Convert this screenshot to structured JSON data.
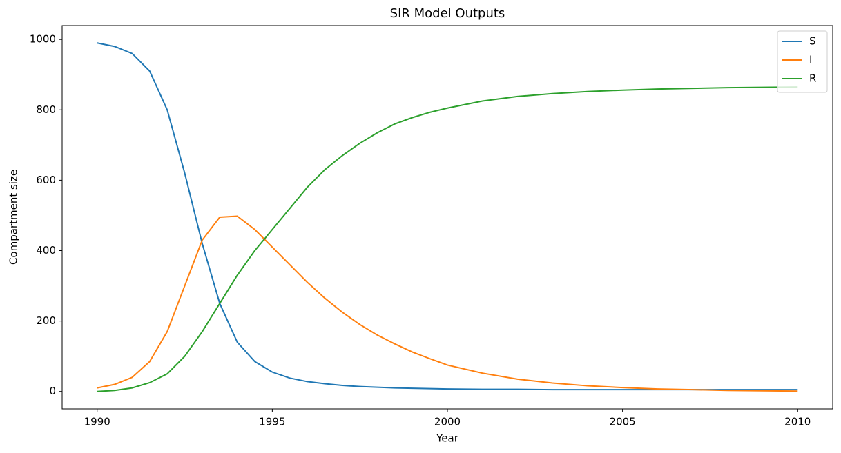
{
  "chart_data": {
    "type": "line",
    "title": "SIR Model Outputs",
    "x_label": "Year",
    "y_label": "Compartment size",
    "x": [
      1990,
      1990.5,
      1991,
      1991.5,
      1992,
      1992.5,
      1993,
      1993.5,
      1994,
      1994.5,
      1995,
      1995.5,
      1996,
      1996.5,
      1997,
      1997.5,
      1998,
      1998.5,
      1999,
      1999.5,
      2000,
      2001,
      2002,
      2003,
      2004,
      2005,
      2006,
      2007,
      2008,
      2009,
      2010
    ],
    "series": [
      {
        "name": "S",
        "color": "#1f77b4",
        "values": [
          990,
          980,
          960,
          910,
          800,
          620,
          420,
          250,
          140,
          85,
          55,
          38,
          28,
          22,
          17,
          14,
          12,
          10,
          9,
          8,
          7,
          6,
          6,
          5,
          5,
          5,
          5,
          5,
          5,
          5,
          5
        ]
      },
      {
        "name": "I",
        "color": "#ff7f0e",
        "values": [
          10,
          20,
          40,
          85,
          170,
          300,
          430,
          495,
          498,
          460,
          410,
          360,
          310,
          265,
          225,
          190,
          160,
          135,
          112,
          93,
          75,
          52,
          35,
          24,
          16,
          11,
          7,
          5,
          3,
          2,
          1
        ]
      },
      {
        "name": "R",
        "color": "#2ca02c",
        "values": [
          0,
          3,
          10,
          25,
          50,
          100,
          170,
          250,
          330,
          400,
          460,
          520,
          580,
          630,
          670,
          705,
          735,
          760,
          778,
          793,
          805,
          825,
          838,
          846,
          852,
          856,
          859,
          861,
          863,
          864,
          865
        ]
      }
    ],
    "xlim": [
      1989,
      2011
    ],
    "ylim": [
      -49.5,
      1039.5
    ],
    "xticks": [
      1990,
      1995,
      2000,
      2005,
      2010
    ],
    "yticks": [
      0,
      200,
      400,
      600,
      800,
      1000
    ],
    "legend": "upper right"
  }
}
